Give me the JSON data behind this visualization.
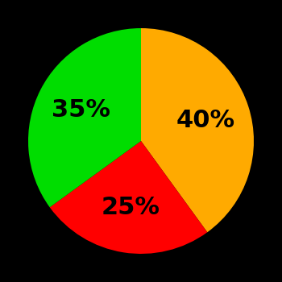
{
  "slices": [
    40,
    25,
    35
  ],
  "colors": [
    "#ffaa00",
    "#ff0000",
    "#00dd00"
  ],
  "labels": [
    "40%",
    "25%",
    "35%"
  ],
  "background_color": "#000000",
  "text_color": "#000000",
  "startangle": 90,
  "figsize": [
    3.5,
    3.5
  ],
  "dpi": 100
}
